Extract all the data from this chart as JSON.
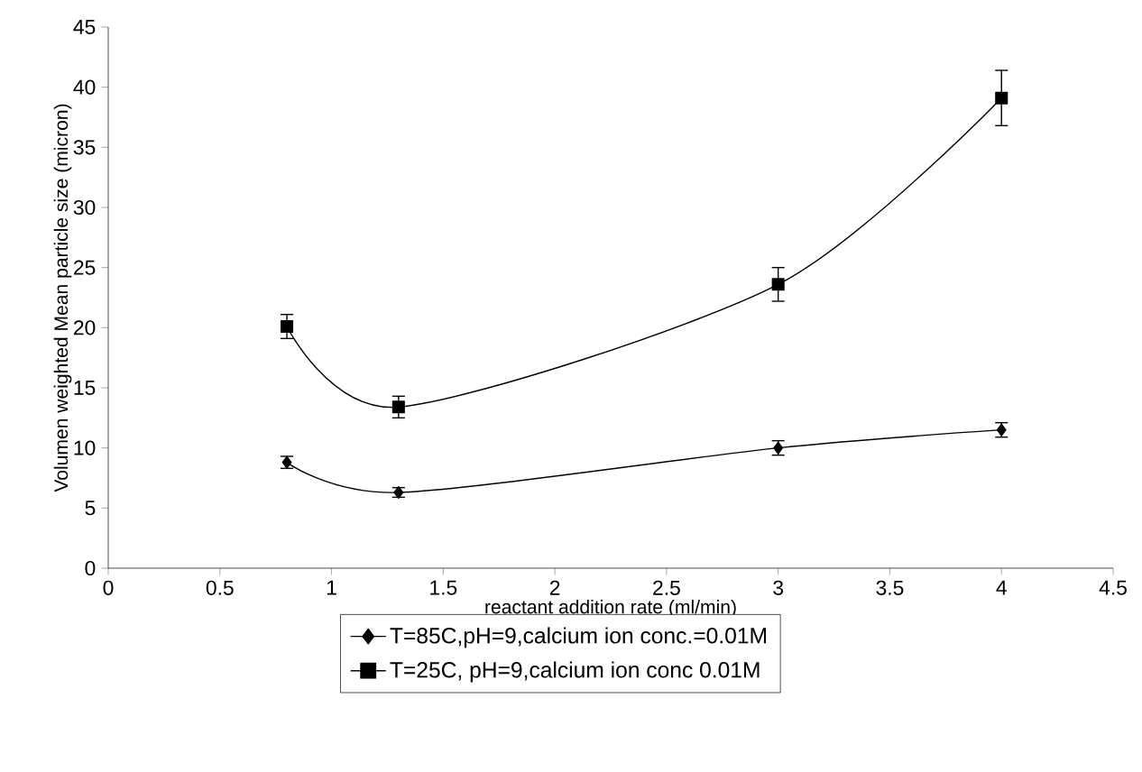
{
  "chart_data": {
    "type": "line",
    "xlabel": "reactant addition rate (ml/min)",
    "ylabel": "Volumen weighted Mean particle size (micron)",
    "x": [
      0.8,
      1.3,
      3,
      4
    ],
    "series": [
      {
        "name": "T=85C,pH=9,calcium ion conc.=0.01M",
        "color": "#000000",
        "marker": "diamond",
        "values": [
          8.8,
          6.3,
          10.0,
          11.5
        ],
        "errors": [
          0.5,
          0.4,
          0.6,
          0.6
        ]
      },
      {
        "name": "T=25C, pH=9,calcium ion conc 0.01M",
        "color": "#000000",
        "marker": "square",
        "values": [
          20.1,
          13.4,
          23.6,
          39.1
        ],
        "errors": [
          1.0,
          0.9,
          1.4,
          2.3
        ]
      }
    ],
    "xlim": [
      0,
      4.5
    ],
    "xticks": [
      0,
      0.5,
      1,
      1.5,
      2,
      2.5,
      3,
      3.5,
      4,
      4.5
    ],
    "ylim": [
      0,
      45
    ],
    "yticks": [
      0,
      5,
      10,
      15,
      20,
      25,
      30,
      35,
      40,
      45
    ],
    "grid": false,
    "legend": "bottom",
    "line_style": "solid"
  }
}
